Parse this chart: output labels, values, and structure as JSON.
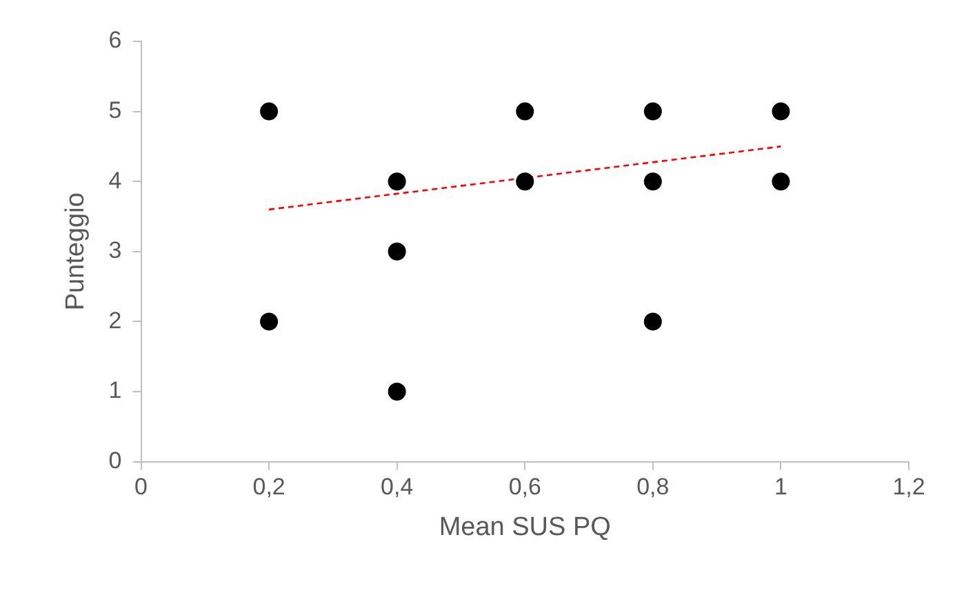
{
  "chart_data": {
    "type": "scatter",
    "xlabel": "Mean SUS PQ",
    "ylabel": "Punteggio",
    "xlim": [
      0,
      1.2
    ],
    "xticks": [
      0,
      {
        "value": 0.2,
        "label": "0,2"
      },
      {
        "value": 0.4,
        "label": "0,4"
      },
      {
        "value": 0.6,
        "label": "0,6"
      },
      {
        "value": 0.8,
        "label": "0,8"
      },
      1,
      {
        "value": 1.2,
        "label": "1,2"
      }
    ],
    "ylim": [
      0,
      6
    ],
    "yticks": [
      0,
      1,
      2,
      3,
      4,
      5,
      6
    ],
    "grid": false,
    "legend": false,
    "marker": "circle",
    "series": [
      {
        "color": "#000000",
        "x": [
          0.2,
          0.2,
          0.4,
          0.4,
          0.4,
          0.6,
          0.6,
          0.8,
          0.8,
          0.8,
          1,
          1
        ],
        "values": [
          5,
          2,
          4,
          3,
          1,
          5,
          4,
          5,
          4,
          2,
          5,
          4
        ]
      },
      {
        "type": "line",
        "color": "#ff0000",
        "line_style": "dashed",
        "marker": "none",
        "x": [
          0.2,
          1
        ],
        "values": [
          3.6,
          4.5
        ]
      }
    ]
  }
}
